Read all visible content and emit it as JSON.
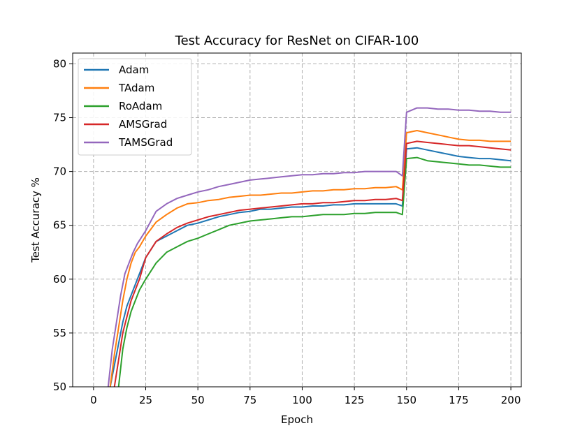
{
  "chart_data": {
    "type": "line",
    "title": "Test Accuracy for ResNet on CIFAR-100",
    "xlabel": "Epoch",
    "ylabel": "Test Accuracy %",
    "xlim": [
      -10,
      205
    ],
    "ylim": [
      50,
      81
    ],
    "xticks": [
      0,
      25,
      50,
      75,
      100,
      125,
      150,
      175,
      200
    ],
    "yticks": [
      50,
      55,
      60,
      65,
      70,
      75,
      80
    ],
    "grid": true,
    "legend_position": "top-left",
    "series": [
      {
        "name": "Adam",
        "color": "#1f77b4",
        "x": [
          8,
          10,
          12,
          14,
          16,
          18,
          20,
          22,
          25,
          30,
          35,
          40,
          45,
          50,
          55,
          60,
          65,
          70,
          75,
          80,
          85,
          90,
          95,
          100,
          105,
          110,
          115,
          120,
          125,
          130,
          135,
          140,
          145,
          148,
          150,
          155,
          160,
          165,
          170,
          175,
          180,
          185,
          190,
          195,
          200
        ],
        "y": [
          50,
          52,
          54,
          56,
          57.5,
          58.5,
          59.5,
          60.5,
          62,
          63.5,
          64,
          64.5,
          65,
          65.2,
          65.5,
          65.8,
          66,
          66.2,
          66.3,
          66.5,
          66.5,
          66.6,
          66.7,
          66.7,
          66.8,
          66.8,
          66.9,
          66.9,
          67,
          67,
          67,
          67,
          67,
          66.8,
          72.1,
          72.2,
          72,
          71.8,
          71.6,
          71.4,
          71.3,
          71.2,
          71.2,
          71.1,
          71
        ]
      },
      {
        "name": "TAdam",
        "color": "#ff7f0e",
        "x": [
          8,
          10,
          12,
          14,
          16,
          18,
          20,
          22,
          25,
          30,
          35,
          40,
          45,
          50,
          55,
          60,
          65,
          70,
          75,
          80,
          85,
          90,
          95,
          100,
          105,
          110,
          115,
          120,
          125,
          130,
          135,
          140,
          145,
          148,
          150,
          155,
          160,
          165,
          170,
          175,
          180,
          185,
          190,
          195,
          200
        ],
        "y": [
          50,
          53,
          55.5,
          58,
          60,
          61.5,
          62.5,
          63,
          64,
          65.3,
          66,
          66.6,
          67,
          67.1,
          67.3,
          67.4,
          67.6,
          67.7,
          67.8,
          67.8,
          67.9,
          68,
          68,
          68.1,
          68.2,
          68.2,
          68.3,
          68.3,
          68.4,
          68.4,
          68.5,
          68.5,
          68.6,
          68.3,
          73.6,
          73.8,
          73.6,
          73.4,
          73.2,
          73,
          72.9,
          72.9,
          72.8,
          72.8,
          72.8
        ]
      },
      {
        "name": "RoAdam",
        "color": "#2ca02c",
        "x": [
          12,
          14,
          16,
          18,
          20,
          22,
          25,
          30,
          35,
          40,
          45,
          50,
          55,
          60,
          65,
          70,
          75,
          80,
          85,
          90,
          95,
          100,
          105,
          110,
          115,
          120,
          125,
          130,
          135,
          140,
          145,
          148,
          150,
          155,
          160,
          165,
          170,
          175,
          180,
          185,
          190,
          195,
          200
        ],
        "y": [
          50,
          53.5,
          55.5,
          57,
          58,
          59,
          60,
          61.5,
          62.5,
          63,
          63.5,
          63.8,
          64.2,
          64.6,
          65,
          65.2,
          65.4,
          65.5,
          65.6,
          65.7,
          65.8,
          65.8,
          65.9,
          66,
          66,
          66,
          66.1,
          66.1,
          66.2,
          66.2,
          66.2,
          66,
          71.2,
          71.3,
          71,
          70.9,
          70.8,
          70.7,
          70.6,
          70.6,
          70.5,
          70.4,
          70.4
        ]
      },
      {
        "name": "AMSGrad",
        "color": "#d62728",
        "x": [
          10,
          12,
          14,
          16,
          18,
          20,
          22,
          25,
          30,
          35,
          40,
          45,
          50,
          55,
          60,
          65,
          70,
          75,
          80,
          85,
          90,
          95,
          100,
          105,
          110,
          115,
          120,
          125,
          130,
          135,
          140,
          145,
          148,
          150,
          155,
          160,
          165,
          170,
          175,
          180,
          185,
          190,
          195,
          200
        ],
        "y": [
          50,
          52.5,
          55,
          56.5,
          58,
          59,
          60,
          62,
          63.5,
          64.2,
          64.8,
          65.2,
          65.5,
          65.8,
          66,
          66.2,
          66.4,
          66.5,
          66.6,
          66.7,
          66.8,
          66.9,
          67,
          67,
          67.1,
          67.1,
          67.2,
          67.3,
          67.3,
          67.4,
          67.4,
          67.5,
          67.3,
          72.6,
          72.8,
          72.7,
          72.6,
          72.5,
          72.4,
          72.4,
          72.3,
          72.2,
          72.1,
          72
        ]
      },
      {
        "name": "TAMSGrad",
        "color": "#9467bd",
        "x": [
          7,
          9,
          11,
          13,
          15,
          17,
          19,
          21,
          25,
          30,
          35,
          40,
          45,
          50,
          55,
          60,
          65,
          70,
          75,
          80,
          85,
          90,
          95,
          100,
          105,
          110,
          115,
          120,
          125,
          130,
          135,
          140,
          145,
          148,
          150,
          155,
          160,
          165,
          170,
          175,
          180,
          185,
          190,
          195,
          200
        ],
        "y": [
          50,
          53.5,
          56,
          58.5,
          60.5,
          61.5,
          62.5,
          63.3,
          64.5,
          66.3,
          67,
          67.5,
          67.8,
          68.1,
          68.3,
          68.6,
          68.8,
          69,
          69.2,
          69.3,
          69.4,
          69.5,
          69.6,
          69.7,
          69.7,
          69.8,
          69.8,
          69.9,
          69.9,
          70,
          70,
          70,
          70,
          69.6,
          75.5,
          75.9,
          75.9,
          75.8,
          75.8,
          75.7,
          75.7,
          75.6,
          75.6,
          75.5,
          75.5
        ]
      }
    ]
  }
}
